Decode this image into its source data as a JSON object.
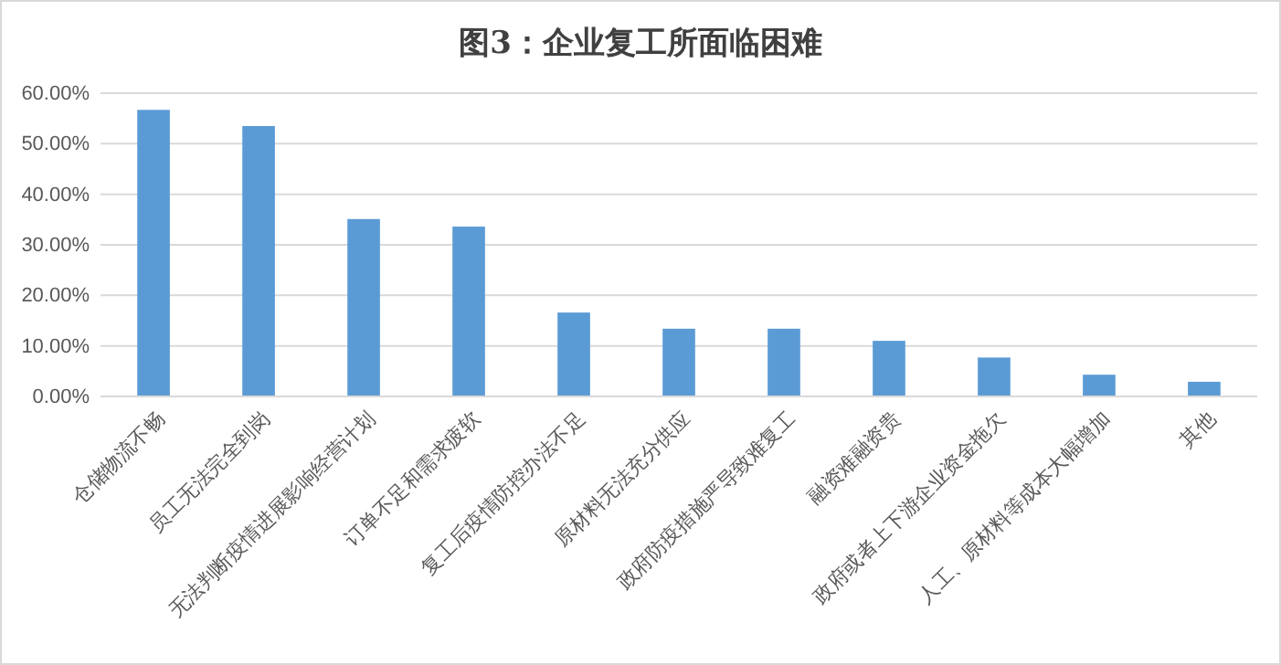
{
  "chart_data": {
    "type": "bar",
    "title": "图3：企业复工所面临困难",
    "categories": [
      "仓储物流不畅",
      "员工无法完全到岗",
      "无法判断疫情进展影响经营计划",
      "订单不足和需求疲软",
      "复工后疫情防控办法不足",
      "原材料无法充分供应",
      "政府防疫措施严导致难复工",
      "融资难融资贵",
      "政府或者上下游企业资金拖欠",
      "人工、原材料等成本大幅增加",
      "其他"
    ],
    "values": [
      56.7,
      53.5,
      35.1,
      33.6,
      16.6,
      13.4,
      13.4,
      11.0,
      7.7,
      4.3,
      2.9
    ],
    "color": "#5b9bd5",
    "ylim": [
      0,
      60
    ],
    "yticks": [
      {
        "value": 0,
        "label": "0.00%"
      },
      {
        "value": 10,
        "label": "10.00%"
      },
      {
        "value": 20,
        "label": "20.00%"
      },
      {
        "value": 30,
        "label": "30.00%"
      },
      {
        "value": 40,
        "label": "40.00%"
      },
      {
        "value": 50,
        "label": "50.00%"
      },
      {
        "value": 60,
        "label": "60.00%"
      }
    ],
    "grid": "y"
  }
}
